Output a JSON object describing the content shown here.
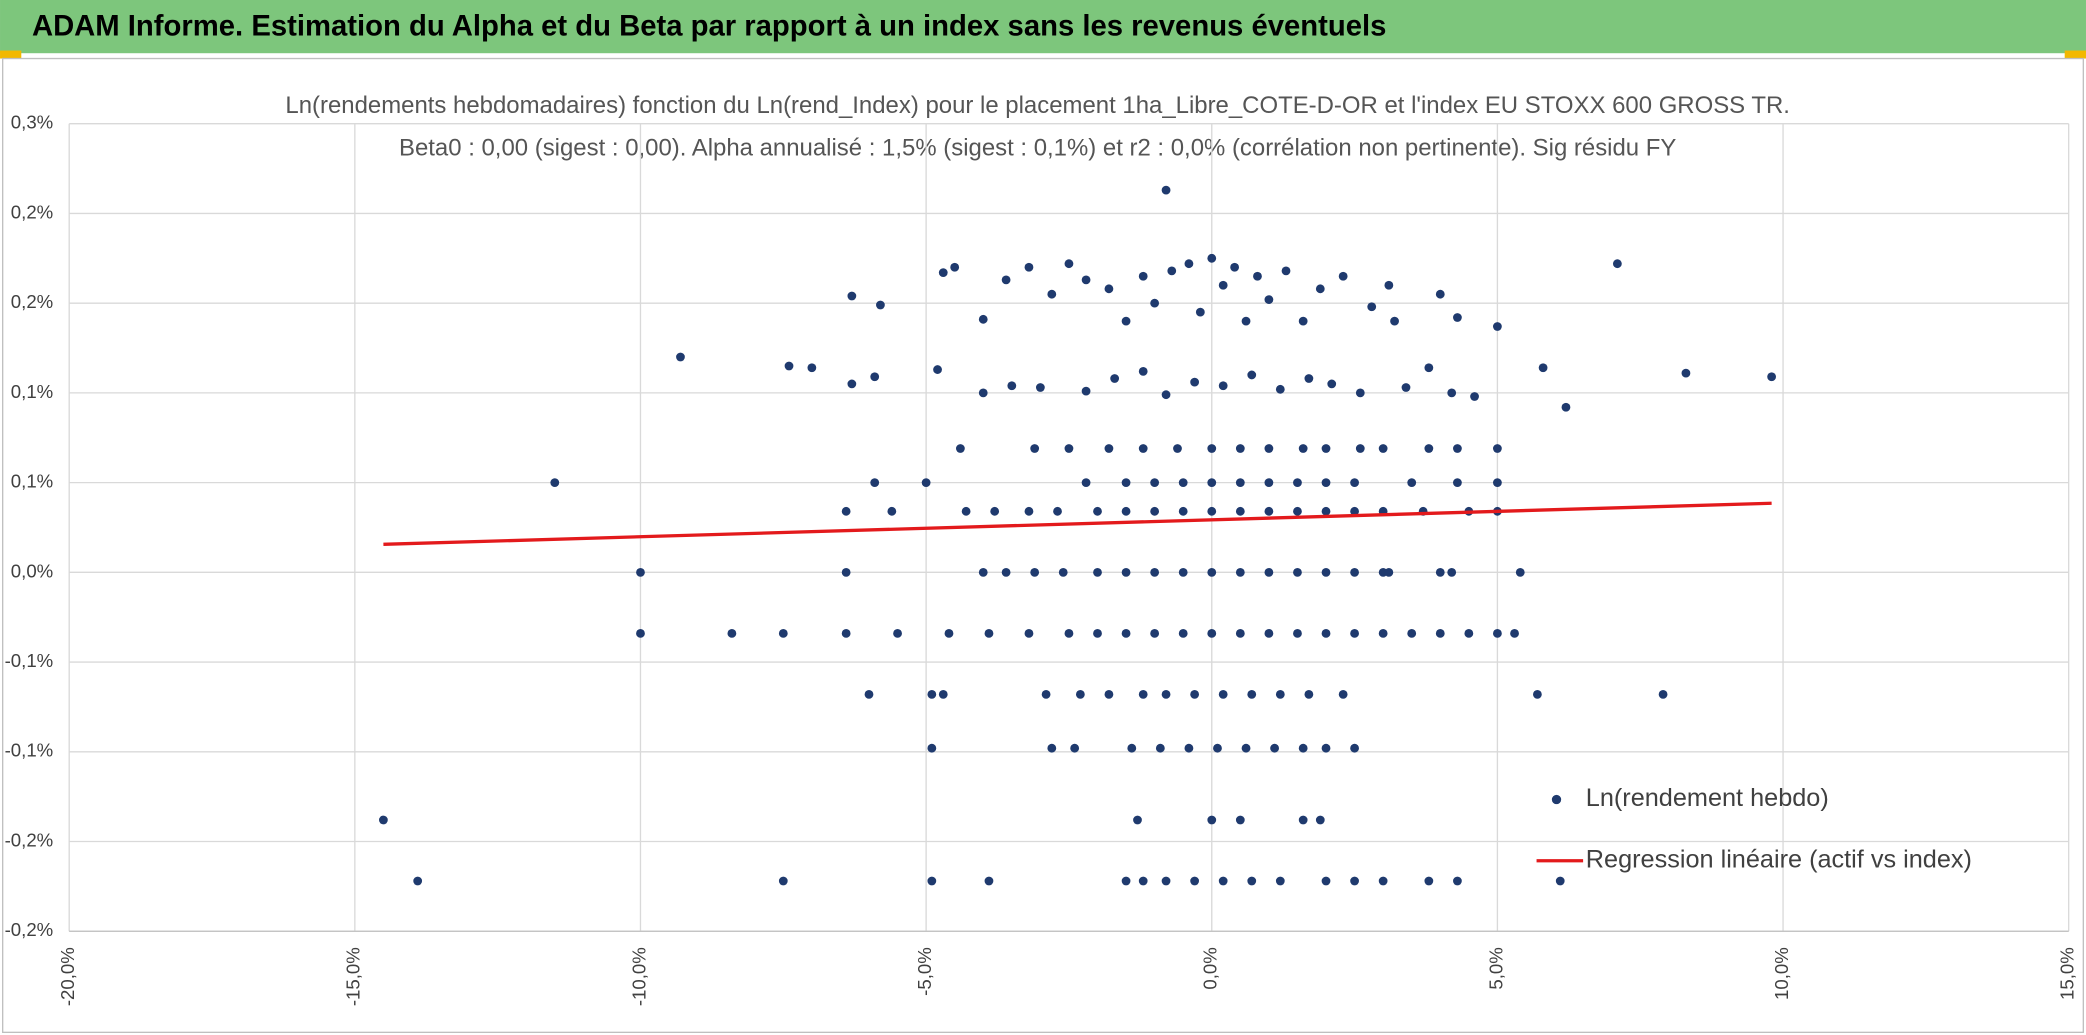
{
  "header": {
    "title": "ADAM Informe. Estimation du Alpha et du Beta par rapport à un index sans les revenus éventuels"
  },
  "chart_data": {
    "type": "scatter",
    "title": "Ln(rendements hebdomadaires) fonction du Ln(rend_Index) pour le placement 1ha_Libre_COTE-D-OR et l'index EU STOXX 600 GROSS TR.",
    "subtitle": "Beta0 : 0,00 (sigest : 0,00). Alpha annualisé : 1,5% (sigest : 0,1%) et r2 : 0,0% (corrélation non pertinente). Sig résidu FY",
    "xlim": [
      -20,
      15
    ],
    "xticks": [
      {
        "value": -20,
        "label": "-20,0%"
      },
      {
        "value": -15,
        "label": "-15,0%"
      },
      {
        "value": -10,
        "label": "-10,0%"
      },
      {
        "value": -5,
        "label": "-5,0%"
      },
      {
        "value": 0,
        "label": "0,0%"
      },
      {
        "value": 5,
        "label": "5,0%"
      },
      {
        "value": 10,
        "label": "10,0%"
      },
      {
        "value": 15,
        "label": "15,0%"
      }
    ],
    "ylim": [
      -0.2,
      0.25
    ],
    "yticks": [
      {
        "value": -0.2,
        "label": "-0,2%"
      },
      {
        "value": -0.15,
        "label": "-0,2%"
      },
      {
        "value": -0.1,
        "label": "-0,1%"
      },
      {
        "value": -0.05,
        "label": "-0,1%"
      },
      {
        "value": 0,
        "label": "0,0%"
      },
      {
        "value": 0.05,
        "label": "0,1%"
      },
      {
        "value": 0.1,
        "label": "0,1%"
      },
      {
        "value": 0.15,
        "label": "0,2%"
      },
      {
        "value": 0.2,
        "label": "0,2%"
      },
      {
        "value": 0.25,
        "label": "0,3%"
      }
    ],
    "grid": true,
    "legend": "lower right",
    "series": [
      {
        "name": "Ln(rendement hebdo)",
        "color": "#1f3a6e",
        "mode": "markers",
        "x": [
          -10,
          -6.4,
          -4,
          -3.6,
          -3.1,
          -2.6,
          -2,
          -1.5,
          -1,
          -0.5,
          0,
          0.5,
          1,
          1.5,
          2,
          2.5,
          3,
          3.1,
          4,
          4.2,
          5.4,
          -10,
          -8.4,
          -7.5,
          -6.4,
          -5.5,
          -4.6,
          -3.9,
          -3.2,
          -2.5,
          -2,
          -1.5,
          -1,
          -0.5,
          0,
          0.5,
          1,
          1.5,
          2,
          2.5,
          3,
          3.5,
          4,
          4.5,
          5,
          5.3,
          -6.4,
          -5.6,
          -4.3,
          -3.8,
          -3.2,
          -2.7,
          -2,
          -1.5,
          -1,
          -0.5,
          0,
          0.5,
          1,
          1.5,
          2,
          2.5,
          3,
          3.7,
          4.5,
          5,
          -11.5,
          -5.9,
          -5,
          -2.2,
          -1.5,
          -1,
          -0.5,
          0,
          0.5,
          1,
          1.5,
          2,
          2.5,
          3.5,
          4.3,
          5,
          -4.4,
          -3.1,
          -2.5,
          -1.8,
          -1.2,
          -0.6,
          0,
          0.5,
          1,
          1.6,
          2,
          2.6,
          3,
          3.8,
          4.3,
          5,
          -9.3,
          -7.4,
          -7,
          -6.3,
          -5.9,
          -4.8,
          -4,
          -3.5,
          -3,
          -2.2,
          -1.7,
          -1.2,
          -0.8,
          -0.3,
          0.2,
          0.7,
          1.2,
          1.7,
          2.1,
          2.6,
          3.4,
          3.8,
          4.2,
          4.6,
          5.8,
          6.2,
          8.3,
          9.8,
          -6.3,
          -5.8,
          -4.7,
          -4.5,
          -4,
          -3.6,
          -3.2,
          -2.8,
          -2.5,
          -2.2,
          -1.8,
          -1.5,
          -1.2,
          -1,
          -0.7,
          -0.4,
          -0.2,
          0,
          0.2,
          0.4,
          0.6,
          0.8,
          1,
          1.3,
          1.6,
          1.9,
          2.3,
          2.8,
          3.1,
          3.2,
          4,
          4.3,
          5,
          7.1,
          -0.8,
          -6,
          -4.9,
          -4.7,
          -2.9,
          -2.3,
          -1.8,
          -1.2,
          -0.8,
          -0.3,
          0.2,
          0.7,
          1.2,
          1.7,
          2.3,
          5.7,
          7.9,
          -4.9,
          -2.8,
          -2.4,
          -1.4,
          -0.9,
          -0.4,
          0.1,
          0.6,
          1.1,
          1.6,
          2,
          2.5,
          -14.5,
          -1.3,
          0,
          0.5,
          1.6,
          1.9,
          -13.9,
          -7.5,
          -4.9,
          -3.9,
          -1.5,
          -1.2,
          -0.8,
          -0.3,
          0.2,
          0.7,
          1.2,
          2,
          2.5,
          3,
          3.8,
          4.3,
          6.1
        ],
        "values": [
          0,
          0,
          0,
          0,
          0,
          0,
          0,
          0,
          0,
          0,
          0,
          0,
          0,
          0,
          0,
          0,
          0,
          0,
          0,
          0,
          0,
          -0.034,
          -0.034,
          -0.034,
          -0.034,
          -0.034,
          -0.034,
          -0.034,
          -0.034,
          -0.034,
          -0.034,
          -0.034,
          -0.034,
          -0.034,
          -0.034,
          -0.034,
          -0.034,
          -0.034,
          -0.034,
          -0.034,
          -0.034,
          -0.034,
          -0.034,
          -0.034,
          -0.034,
          -0.034,
          0.034,
          0.034,
          0.034,
          0.034,
          0.034,
          0.034,
          0.034,
          0.034,
          0.034,
          0.034,
          0.034,
          0.034,
          0.034,
          0.034,
          0.034,
          0.034,
          0.034,
          0.034,
          0.034,
          0.034,
          0.05,
          0.05,
          0.05,
          0.05,
          0.05,
          0.05,
          0.05,
          0.05,
          0.05,
          0.05,
          0.05,
          0.05,
          0.05,
          0.05,
          0.05,
          0.05,
          0.069,
          0.069,
          0.069,
          0.069,
          0.069,
          0.069,
          0.069,
          0.069,
          0.069,
          0.069,
          0.069,
          0.069,
          0.069,
          0.069,
          0.069,
          0.069,
          0.12,
          0.115,
          0.114,
          0.105,
          0.109,
          0.113,
          0.1,
          0.104,
          0.103,
          0.101,
          0.108,
          0.112,
          0.099,
          0.106,
          0.104,
          0.11,
          0.102,
          0.108,
          0.105,
          0.1,
          0.103,
          0.114,
          0.1,
          0.098,
          0.114,
          0.092,
          0.111,
          0.109,
          0.154,
          0.149,
          0.167,
          0.17,
          0.141,
          0.163,
          0.17,
          0.155,
          0.172,
          0.163,
          0.158,
          0.14,
          0.165,
          0.15,
          0.168,
          0.172,
          0.145,
          0.175,
          0.16,
          0.17,
          0.14,
          0.165,
          0.152,
          0.168,
          0.14,
          0.158,
          0.165,
          0.148,
          0.16,
          0.14,
          0.155,
          0.142,
          0.137,
          0.172,
          0.213,
          -0.068,
          -0.068,
          -0.068,
          -0.068,
          -0.068,
          -0.068,
          -0.068,
          -0.068,
          -0.068,
          -0.068,
          -0.068,
          -0.068,
          -0.068,
          -0.068,
          -0.068,
          -0.068,
          -0.098,
          -0.098,
          -0.098,
          -0.098,
          -0.098,
          -0.098,
          -0.098,
          -0.098,
          -0.098,
          -0.098,
          -0.098,
          -0.098,
          -0.138,
          -0.138,
          -0.138,
          -0.138,
          -0.138,
          -0.138,
          -0.172,
          -0.172,
          -0.172,
          -0.172,
          -0.172,
          -0.172,
          -0.172,
          -0.172,
          -0.172,
          -0.172,
          -0.172,
          -0.172,
          -0.172,
          -0.172,
          -0.172,
          -0.172,
          -0.172
        ]
      },
      {
        "name": "Regression linéaire (actif vs index)",
        "color": "#e31a1c",
        "mode": "line",
        "x": [
          -14.5,
          9.8
        ],
        "values": [
          0.0156,
          0.0385
        ]
      }
    ]
  }
}
